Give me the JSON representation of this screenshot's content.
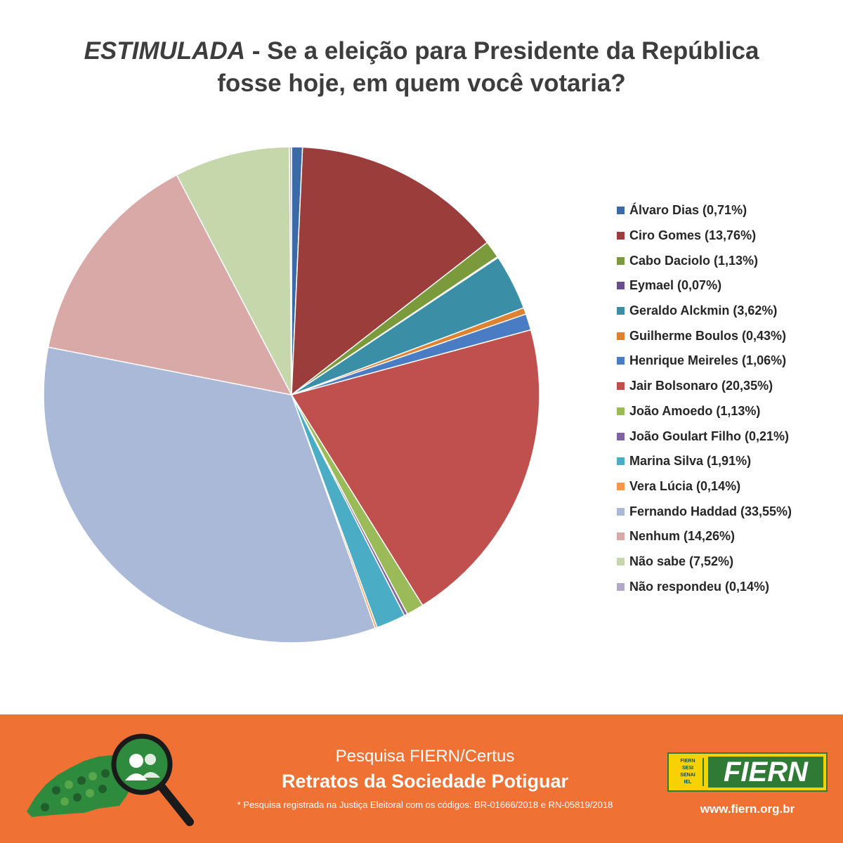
{
  "header": {
    "title_emphasis": "ESTIMULADA",
    "title_rest": " - Se a eleição para Presidente da República",
    "title_line2": "fosse hoje, em quem você votaria?"
  },
  "chart_data": {
    "type": "pie",
    "title": "ESTIMULADA - Se a eleição para Presidente da República fosse hoje, em quem você votaria?",
    "legend_position": "right",
    "start_angle": "top, clockwise",
    "series": [
      {
        "name": "Álvaro Dias",
        "label": "Álvaro Dias (0,71%)",
        "value": 0.71,
        "color": "#3c6aa6"
      },
      {
        "name": "Ciro Gomes",
        "label": "Ciro Gomes (13,76%)",
        "value": 13.76,
        "color": "#9b3d3b"
      },
      {
        "name": "Cabo Daciolo",
        "label": "Cabo Daciolo (1,13%)",
        "value": 1.13,
        "color": "#7a9a3c"
      },
      {
        "name": "Eymael",
        "label": "Eymael (0,07%)",
        "value": 0.07,
        "color": "#6a4d8c"
      },
      {
        "name": "Geraldo Alckmin",
        "label": "Geraldo Alckmin (3,62%)",
        "value": 3.62,
        "color": "#3a8ea5"
      },
      {
        "name": "Guilherme Boulos",
        "label": "Guilherme Boulos (0,43%)",
        "value": 0.43,
        "color": "#dd8133"
      },
      {
        "name": "Henrique Meireles",
        "label": "Henrique Meireles (1,06%)",
        "value": 1.06,
        "color": "#4a7cc4"
      },
      {
        "name": "Jair Bolsonaro",
        "label": "Jair Bolsonaro (20,35%)",
        "value": 20.35,
        "color": "#c0504d"
      },
      {
        "name": "João Amoedo",
        "label": "João Amoedo (1,13%)",
        "value": 1.13,
        "color": "#9bbb59"
      },
      {
        "name": "João Goulart Filho",
        "label": "João Goulart Filho (0,21%)",
        "value": 0.21,
        "color": "#8064a2"
      },
      {
        "name": "Marina Silva",
        "label": "Marina Silva (1,91%)",
        "value": 1.91,
        "color": "#4bacc6"
      },
      {
        "name": "Vera Lúcia",
        "label": "Vera Lúcia (0,14%)",
        "value": 0.14,
        "color": "#f79646"
      },
      {
        "name": "Fernando Haddad",
        "label": "Fernando Haddad (33,55%)",
        "value": 33.55,
        "color": "#aab9d8"
      },
      {
        "name": "Nenhum",
        "label": "Nenhum (14,26%)",
        "value": 14.26,
        "color": "#d9a9a8"
      },
      {
        "name": "Não sabe",
        "label": "Não sabe (7,52%)",
        "value": 7.52,
        "color": "#c5d7ab"
      },
      {
        "name": "Não respondeu",
        "label": "Não respondeu (0,14%)",
        "value": 0.14,
        "color": "#b2a8c9"
      }
    ]
  },
  "footer": {
    "subtitle": "Pesquisa FIERN/Certus",
    "main_title": "Retratos da Sociedade Potiguar",
    "note": "* Pesquisa registrada na Justiça Eleitoral com os códigos: BR-01666/2018 e RN-05819/2018",
    "brand_mini": [
      "FIERN",
      "SESI",
      "SENAI",
      "IEL"
    ],
    "brand_name": "FIERN",
    "url": "www.fiern.org.br",
    "background_color": "#ef7134"
  }
}
